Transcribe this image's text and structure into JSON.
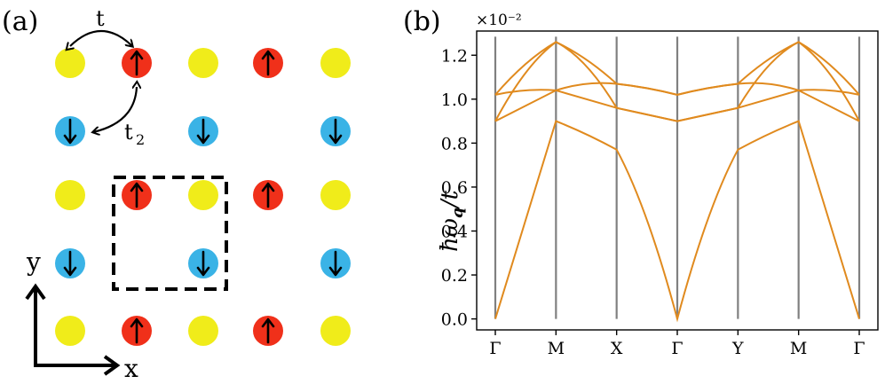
{
  "panel_a": {
    "label": "(a)",
    "hop_t_label": "t",
    "hop_t2_label": "t",
    "hop_t2_subscript": "2",
    "axis_x_label": "x",
    "axis_y_label": "y",
    "colors": {
      "nonmagnetic": "#f0ec1a",
      "spin_up": "#f0301a",
      "spin_down": "#3ab3e6"
    },
    "lattice": [
      [
        "yellow",
        "red-up",
        "yellow",
        "red-up",
        "yellow"
      ],
      [
        "blue-down",
        "empty",
        "blue-down",
        "empty",
        "blue-down"
      ],
      [
        "yellow",
        "red-up",
        "yellow",
        "red-up",
        "yellow"
      ],
      [
        "blue-down",
        "empty",
        "blue-down",
        "empty",
        "blue-down"
      ],
      [
        "yellow",
        "red-up",
        "yellow",
        "red-up",
        "yellow"
      ]
    ]
  },
  "panel_b": {
    "label": "(b)",
    "exponent_label": "×10⁻²",
    "ylabel_main": "ħω",
    "ylabel_sub": "q",
    "ylabel_tail": "/t",
    "line_color": "#e08a1e",
    "vline_color": "#808080"
  },
  "chart_data": {
    "type": "line",
    "title": "",
    "xlabel": "",
    "ylabel": "ħω_q/t",
    "y_scale_factor": "×10⁻²",
    "ylim": [
      -0.05,
      1.31
    ],
    "yticks": [
      0.0,
      0.2,
      0.4,
      0.6,
      0.8,
      1.0,
      1.2
    ],
    "ytick_labels": [
      "0.0",
      "0.2",
      "0.4",
      "0.6",
      "0.8",
      "1.0",
      "1.2"
    ],
    "x_ticks": [
      "Γ",
      "M",
      "X",
      "Γ",
      "Y",
      "M",
      "Γ"
    ],
    "series": [
      {
        "values": [
          [
            0.0,
            0.45,
            0.9
          ],
          [
            0.9,
            0.84,
            0.77
          ],
          [
            0.77,
            0.45,
            0.0
          ],
          [
            0.0,
            0.45,
            0.77
          ],
          [
            0.77,
            0.84,
            0.9
          ],
          [
            0.9,
            0.45,
            0.0
          ]
        ]
      },
      {
        "values": [
          [
            0.9,
            0.97,
            1.04
          ],
          [
            1.04,
            1.0,
            0.96
          ],
          [
            0.96,
            0.93,
            0.9
          ],
          [
            0.9,
            0.93,
            0.96
          ],
          [
            0.96,
            1.0,
            1.04
          ],
          [
            1.04,
            0.97,
            0.9
          ]
        ]
      },
      {
        "values": [
          [
            1.02,
            1.04,
            1.04
          ],
          [
            1.04,
            1.07,
            1.07
          ],
          [
            1.07,
            1.05,
            1.02
          ],
          [
            1.02,
            1.05,
            1.07
          ],
          [
            1.07,
            1.07,
            1.04
          ],
          [
            1.04,
            1.04,
            1.02
          ]
        ]
      },
      {
        "values": [
          [
            1.02,
            1.16,
            1.26
          ],
          [
            1.26,
            1.18,
            1.07
          ],
          [
            1.07,
            1.05,
            1.02
          ],
          [
            1.02,
            1.05,
            1.07
          ],
          [
            1.07,
            1.18,
            1.26
          ],
          [
            1.26,
            1.16,
            1.02
          ]
        ]
      },
      {
        "values": [
          [
            0.9,
            1.12,
            1.26
          ],
          [
            1.26,
            1.15,
            0.96
          ],
          [
            0.96,
            0.93,
            0.9
          ],
          [
            0.9,
            0.93,
            0.96
          ],
          [
            0.96,
            1.15,
            1.26
          ],
          [
            1.26,
            1.12,
            0.9
          ]
        ]
      }
    ]
  }
}
